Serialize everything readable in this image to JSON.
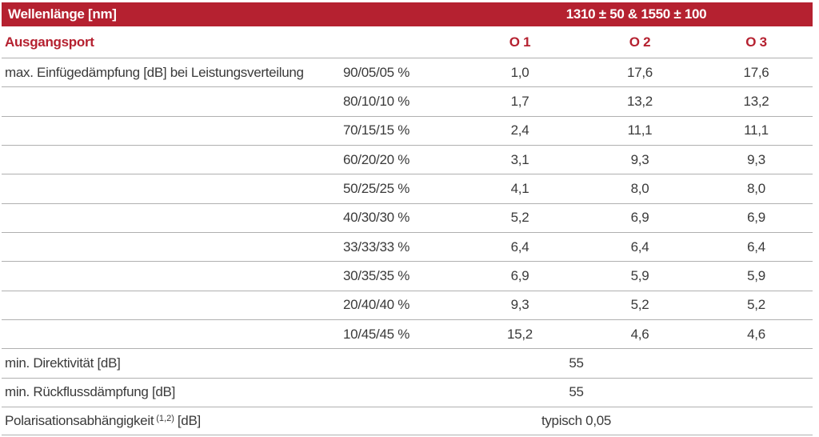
{
  "header": {
    "wavelength_label": "Wellenlänge [nm]",
    "wavelength_value": "1310 ± 50 & 1550 ± 100"
  },
  "ports": {
    "label": "Ausgangsport",
    "o1": "O 1",
    "o2": "O 2",
    "o3": "O 3"
  },
  "insertion_loss": {
    "label": "max. Einfügedämpfung [dB] bei Leistungsverteilung",
    "rows": [
      {
        "split": "90/05/05 %",
        "o1": "1,0",
        "o2": "17,6",
        "o3": "17,6"
      },
      {
        "split": "80/10/10 %",
        "o1": "1,7",
        "o2": "13,2",
        "o3": "13,2"
      },
      {
        "split": "70/15/15 %",
        "o1": "2,4",
        "o2": "11,1",
        "o3": "11,1"
      },
      {
        "split": "60/20/20 %",
        "o1": "3,1",
        "o2": "9,3",
        "o3": "9,3"
      },
      {
        "split": "50/25/25 %",
        "o1": "4,1",
        "o2": "8,0",
        "o3": "8,0"
      },
      {
        "split": "40/30/30 %",
        "o1": "5,2",
        "o2": "6,9",
        "o3": "6,9"
      },
      {
        "split": "33/33/33 %",
        "o1": "6,4",
        "o2": "6,4",
        "o3": "6,4"
      },
      {
        "split": "30/35/35 %",
        "o1": "6,9",
        "o2": "5,9",
        "o3": "5,9"
      },
      {
        "split": "20/40/40 %",
        "o1": "9,3",
        "o2": "5,2",
        "o3": "5,2"
      },
      {
        "split": "10/45/45 %",
        "o1": "15,2",
        "o2": "4,6",
        "o3": "4,6"
      }
    ]
  },
  "summary": [
    {
      "label": "min. Direktivität [dB]",
      "value": "55"
    },
    {
      "label": "min. Rückflussdämpfung [dB]",
      "value": "55"
    },
    {
      "label": "Polarisationsabhängigkeit",
      "sup": "(1,2)",
      "unit": "[dB]",
      "value": "typisch 0,05"
    }
  ],
  "colors": {
    "accent_red": "#b52130",
    "body_text": "#3a3a3a",
    "separator_line": "#b0b0b0"
  }
}
